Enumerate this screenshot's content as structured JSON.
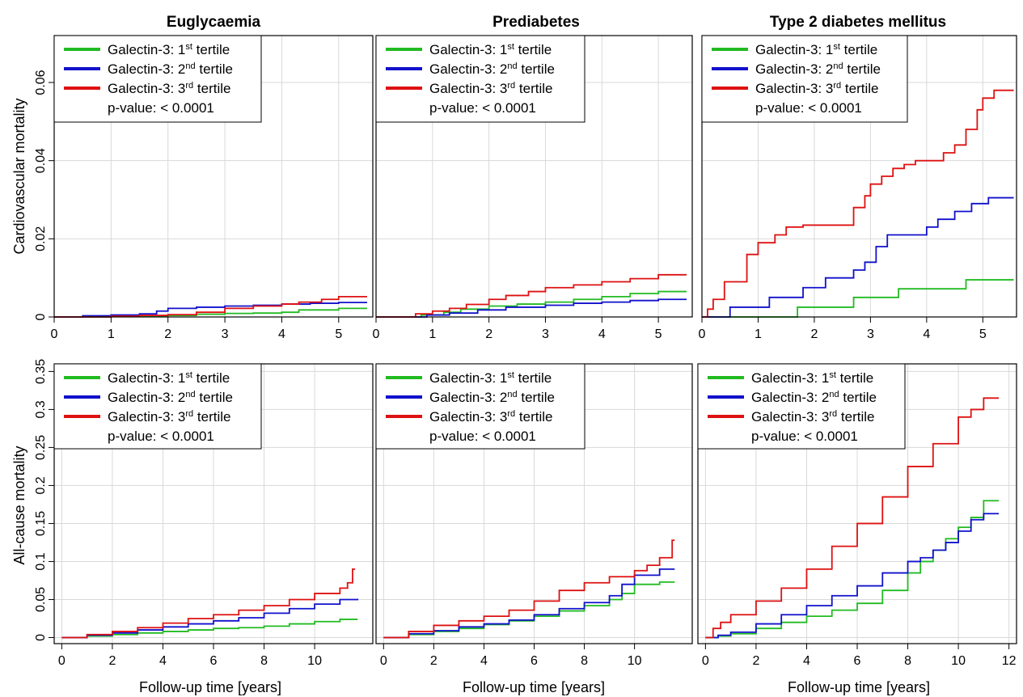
{
  "columns": [
    "Euglycaemia",
    "Prediabetes",
    "Type 2 diabetes mellitus"
  ],
  "row_labels": [
    "Cardiovascular mortality",
    "All-cause mortality"
  ],
  "x_label": "Follow-up time [years]",
  "legend": {
    "prefix": "Galectin-3: ",
    "tertiles": [
      {
        "num": "1",
        "sup": "st",
        "suffix": " tertile",
        "color": "#22bb22"
      },
      {
        "num": "2",
        "sup": "nd",
        "suffix": " tertile",
        "color": "#1111cc"
      },
      {
        "num": "3",
        "sup": "rd",
        "suffix": " tertile",
        "color": "#dd1111"
      }
    ],
    "pvalue": "p-value:  < 0.0001"
  },
  "chart_data": [
    {
      "type": "line",
      "step": true,
      "panel": "Cardiovascular mortality - Euglycaemia",
      "xlim": [
        0,
        5.6
      ],
      "ylim": [
        0,
        0.072
      ],
      "xticks": [
        0,
        1,
        2,
        3,
        4,
        5
      ],
      "yticks": [
        {
          "v": 0,
          "t": "0"
        },
        {
          "v": 0.02,
          "t": "0.02"
        },
        {
          "v": 0.04,
          "t": "0.04"
        },
        {
          "v": 0.06,
          "t": "0.06"
        }
      ],
      "series": [
        {
          "name": "Galectin-3: 1st tertile",
          "color": "#22bb22",
          "x": [
            0,
            1,
            2,
            2.5,
            3,
            3.5,
            4,
            4.3,
            5,
            5.5
          ],
          "y": [
            0,
            0.0002,
            0.0004,
            0.0007,
            0.0009,
            0.001,
            0.0012,
            0.0018,
            0.0022,
            0.0022
          ]
        },
        {
          "name": "Galectin-3: 2nd tertile",
          "color": "#1111cc",
          "x": [
            0,
            0.5,
            1,
            1.5,
            1.8,
            2,
            2.5,
            3,
            3.5,
            4,
            4.5,
            5,
            5.5
          ],
          "y": [
            0,
            0.0003,
            0.0005,
            0.0008,
            0.0015,
            0.0022,
            0.0025,
            0.0028,
            0.003,
            0.0033,
            0.0035,
            0.0037,
            0.0037
          ]
        },
        {
          "name": "Galectin-3: 3rd tertile",
          "color": "#dd1111",
          "x": [
            0,
            1,
            1.5,
            2,
            2.5,
            3,
            3.5,
            4,
            4.3,
            4.7,
            5,
            5.5
          ],
          "y": [
            0,
            0.0002,
            0.0004,
            0.0006,
            0.0012,
            0.0022,
            0.0028,
            0.0033,
            0.0038,
            0.0045,
            0.0052,
            0.0052
          ]
        }
      ]
    },
    {
      "type": "line",
      "step": true,
      "panel": "Cardiovascular mortality - Prediabetes",
      "xlim": [
        0,
        5.6
      ],
      "ylim": [
        0,
        0.072
      ],
      "xticks": [
        0,
        1,
        2,
        3,
        4,
        5
      ],
      "series": [
        {
          "name": "Galectin-3: 1st tertile",
          "color": "#22bb22",
          "x": [
            0,
            0.8,
            1.2,
            1.5,
            2,
            2.5,
            3,
            3.5,
            4,
            4.5,
            5,
            5.5
          ],
          "y": [
            0,
            0.0005,
            0.0012,
            0.002,
            0.0028,
            0.0033,
            0.0038,
            0.0045,
            0.0052,
            0.006,
            0.0065,
            0.0065
          ]
        },
        {
          "name": "Galectin-3: 2nd tertile",
          "color": "#1111cc",
          "x": [
            0,
            0.9,
            1.3,
            1.8,
            2.3,
            3,
            3.5,
            4,
            4.5,
            5,
            5.5
          ],
          "y": [
            0,
            0.0005,
            0.001,
            0.0018,
            0.0025,
            0.003,
            0.0035,
            0.0038,
            0.0042,
            0.0045,
            0.0045
          ]
        },
        {
          "name": "Galectin-3: 3rd tertile",
          "color": "#dd1111",
          "x": [
            0,
            0.7,
            1.0,
            1.3,
            1.6,
            2,
            2.3,
            2.7,
            3,
            3.5,
            4,
            4.5,
            5,
            5.5
          ],
          "y": [
            0,
            0.0008,
            0.0015,
            0.0022,
            0.0032,
            0.0045,
            0.0055,
            0.0065,
            0.0075,
            0.0082,
            0.009,
            0.0098,
            0.0108,
            0.0108
          ]
        }
      ]
    },
    {
      "type": "line",
      "step": true,
      "panel": "Cardiovascular mortality - Type 2 diabetes mellitus",
      "xlim": [
        0,
        5.6
      ],
      "ylim": [
        0,
        0.072
      ],
      "xticks": [
        0,
        1,
        2,
        3,
        4,
        5
      ],
      "series": [
        {
          "name": "Galectin-3: 1st tertile",
          "color": "#22bb22",
          "x": [
            0,
            1.7,
            2.7,
            3.5,
            4.7,
            5.55
          ],
          "y": [
            0,
            0.0025,
            0.005,
            0.0072,
            0.0095,
            0.0095
          ]
        },
        {
          "name": "Galectin-3: 2nd tertile",
          "color": "#1111cc",
          "x": [
            0,
            0.5,
            1.2,
            1.8,
            2.2,
            2.7,
            2.9,
            3.1,
            3.3,
            4,
            4.2,
            4.5,
            4.8,
            5.1,
            5.55
          ],
          "y": [
            0,
            0.0025,
            0.005,
            0.0075,
            0.01,
            0.012,
            0.014,
            0.018,
            0.021,
            0.023,
            0.025,
            0.027,
            0.029,
            0.0305,
            0.0305
          ]
        },
        {
          "name": "Galectin-3: 3rd tertile",
          "color": "#dd1111",
          "x": [
            0,
            0.1,
            0.2,
            0.4,
            0.8,
            1.0,
            1.3,
            1.5,
            1.8,
            2.7,
            2.9,
            3.0,
            3.2,
            3.4,
            3.6,
            3.8,
            4.3,
            4.5,
            4.7,
            4.9,
            5.0,
            5.2,
            5.55
          ],
          "y": [
            0,
            0.002,
            0.0045,
            0.009,
            0.016,
            0.019,
            0.021,
            0.023,
            0.0235,
            0.028,
            0.031,
            0.034,
            0.036,
            0.038,
            0.039,
            0.04,
            0.042,
            0.044,
            0.048,
            0.053,
            0.056,
            0.058,
            0.058
          ]
        }
      ]
    },
    {
      "type": "line",
      "step": true,
      "panel": "All-cause mortality - Euglycaemia",
      "xlim": [
        -0.3,
        12.3
      ],
      "ylim": [
        -0.008,
        0.36
      ],
      "xticks": [
        0,
        2,
        4,
        6,
        8,
        10
      ],
      "yticks": [
        {
          "v": 0,
          "t": "0"
        },
        {
          "v": 0.05,
          "t": "0.05"
        },
        {
          "v": 0.1,
          "t": "0.1"
        },
        {
          "v": 0.15,
          "t": "0.15"
        },
        {
          "v": 0.2,
          "t": "0.2"
        },
        {
          "v": 0.25,
          "t": "0.25"
        },
        {
          "v": 0.3,
          "t": "0.3"
        },
        {
          "v": 0.35,
          "t": "0.35"
        }
      ],
      "series": [
        {
          "name": "Galectin-3: 1st tertile",
          "color": "#22bb22",
          "x": [
            0,
            1,
            2,
            3,
            4,
            5,
            6,
            7,
            8,
            9,
            10,
            11,
            11.7
          ],
          "y": [
            0,
            0.002,
            0.004,
            0.006,
            0.008,
            0.01,
            0.012,
            0.013,
            0.015,
            0.018,
            0.021,
            0.024,
            0.024
          ]
        },
        {
          "name": "Galectin-3: 2nd tertile",
          "color": "#1111cc",
          "x": [
            0,
            1,
            2,
            3,
            4,
            5,
            6,
            7,
            8,
            9,
            10,
            11,
            11.7
          ],
          "y": [
            0,
            0.003,
            0.006,
            0.01,
            0.014,
            0.018,
            0.022,
            0.026,
            0.032,
            0.038,
            0.044,
            0.05,
            0.051
          ]
        },
        {
          "name": "Galectin-3: 3rd tertile",
          "color": "#dd1111",
          "x": [
            0,
            1,
            2,
            3,
            4,
            5,
            6,
            7,
            8,
            9,
            10,
            11,
            11.3,
            11.5,
            11.6
          ],
          "y": [
            0,
            0.004,
            0.008,
            0.013,
            0.019,
            0.025,
            0.03,
            0.036,
            0.042,
            0.05,
            0.058,
            0.065,
            0.072,
            0.09,
            0.09
          ]
        }
      ]
    },
    {
      "type": "line",
      "step": true,
      "panel": "All-cause mortality - Prediabetes",
      "xlim": [
        -0.3,
        12.3
      ],
      "ylim": [
        -0.008,
        0.36
      ],
      "xticks": [
        0,
        2,
        4,
        6,
        8,
        10
      ],
      "series": [
        {
          "name": "Galectin-3: 1st tertile",
          "color": "#22bb22",
          "x": [
            0,
            1,
            2,
            3,
            4,
            5,
            6,
            7,
            8,
            9,
            9.5,
            10,
            11,
            11.6
          ],
          "y": [
            0,
            0.004,
            0.008,
            0.012,
            0.017,
            0.022,
            0.028,
            0.035,
            0.042,
            0.05,
            0.058,
            0.07,
            0.073,
            0.073
          ]
        },
        {
          "name": "Galectin-3: 2nd tertile",
          "color": "#1111cc",
          "x": [
            0,
            1,
            2,
            3,
            4,
            5,
            6,
            7,
            8,
            9,
            9.5,
            10,
            11,
            11.6
          ],
          "y": [
            0,
            0.005,
            0.009,
            0.014,
            0.018,
            0.023,
            0.03,
            0.038,
            0.046,
            0.055,
            0.07,
            0.082,
            0.09,
            0.09
          ]
        },
        {
          "name": "Galectin-3: 3rd tertile",
          "color": "#dd1111",
          "x": [
            0,
            1,
            2,
            3,
            4,
            5,
            6,
            7,
            8,
            9,
            10,
            10.5,
            11,
            11.5,
            11.6
          ],
          "y": [
            0,
            0.008,
            0.016,
            0.022,
            0.028,
            0.036,
            0.048,
            0.062,
            0.072,
            0.08,
            0.088,
            0.095,
            0.105,
            0.128,
            0.128
          ]
        }
      ]
    },
    {
      "type": "line",
      "step": true,
      "panel": "All-cause mortality - Type 2 diabetes mellitus",
      "xlim": [
        -0.3,
        12.3
      ],
      "ylim": [
        -0.008,
        0.36
      ],
      "xticks": [
        0,
        2,
        4,
        6,
        8,
        10,
        12
      ],
      "series": [
        {
          "name": "Galectin-3: 1st tertile",
          "color": "#22bb22",
          "x": [
            0,
            0.5,
            1,
            2,
            3,
            4,
            5,
            6,
            7,
            8,
            8.5,
            9,
            9.5,
            10,
            10.5,
            11,
            11.6
          ],
          "y": [
            0,
            0.002,
            0.005,
            0.012,
            0.02,
            0.028,
            0.036,
            0.045,
            0.062,
            0.085,
            0.1,
            0.115,
            0.13,
            0.145,
            0.158,
            0.18,
            0.18
          ]
        },
        {
          "name": "Galectin-3: 2nd tertile",
          "color": "#1111cc",
          "x": [
            0,
            0.5,
            1,
            2,
            3,
            4,
            5,
            6,
            7,
            8,
            8.5,
            9,
            9.5,
            10,
            10.5,
            11,
            11.6
          ],
          "y": [
            0,
            0.003,
            0.007,
            0.018,
            0.03,
            0.042,
            0.055,
            0.068,
            0.085,
            0.1,
            0.105,
            0.115,
            0.125,
            0.14,
            0.155,
            0.163,
            0.163
          ]
        },
        {
          "name": "Galectin-3: 3rd tertile",
          "color": "#dd1111",
          "x": [
            0,
            0.3,
            0.6,
            1,
            2,
            3,
            4,
            5,
            6,
            7,
            8,
            9,
            10,
            10.5,
            11,
            11.6
          ],
          "y": [
            0,
            0.012,
            0.02,
            0.03,
            0.048,
            0.065,
            0.09,
            0.12,
            0.15,
            0.185,
            0.225,
            0.255,
            0.29,
            0.3,
            0.315,
            0.315
          ]
        }
      ]
    }
  ]
}
